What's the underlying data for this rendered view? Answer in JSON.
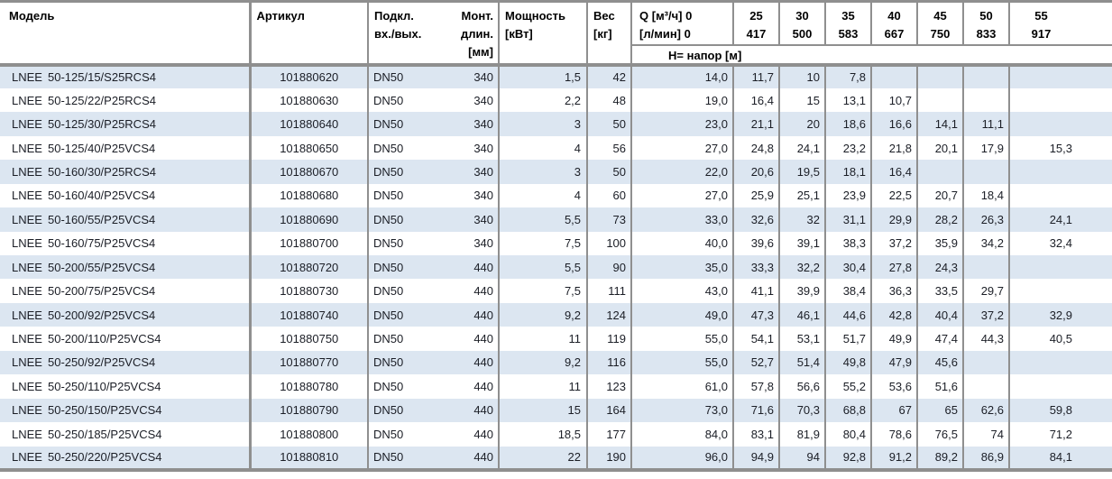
{
  "colors": {
    "stripe": "#dce6f1",
    "border": "#8f8f8f",
    "text": "#1b1e26",
    "header_text": "#000000"
  },
  "table": {
    "header": {
      "model": "Модель",
      "article": "Артикул",
      "connection_line1": "Подкл.",
      "connection_line2": "вх./вых.",
      "length_line1": "Монт.",
      "length_line2": "длин.",
      "length_line3": "[мм]",
      "power_line1": "Мощность",
      "power_line2": "[кВт]",
      "weight_line1": "Вес",
      "weight_line2": "[кг]",
      "q_line1": "Q [м³/ч] 0",
      "q_line2": "[л/мин] 0",
      "flow_columns": [
        {
          "m3h": "25",
          "lmin": "417"
        },
        {
          "m3h": "30",
          "lmin": "500"
        },
        {
          "m3h": "35",
          "lmin": "583"
        },
        {
          "m3h": "40",
          "lmin": "667"
        },
        {
          "m3h": "45",
          "lmin": "750"
        },
        {
          "m3h": "50",
          "lmin": "833"
        },
        {
          "m3h": "55",
          "lmin": "917"
        }
      ],
      "head_subheader": "Н= напор [м]"
    },
    "rows": [
      {
        "brand": "LNEE",
        "model": "50-125/15/S25RCS4",
        "article": "101880620",
        "connection": "DN50",
        "length": "340",
        "power": "1,5",
        "weight": "42",
        "h": [
          "14,0",
          "11,7",
          "10",
          "7,8",
          "",
          "",
          "",
          ""
        ]
      },
      {
        "brand": "LNEE",
        "model": "50-125/22/P25RCS4",
        "article": "101880630",
        "connection": "DN50",
        "length": "340",
        "power": "2,2",
        "weight": "48",
        "h": [
          "19,0",
          "16,4",
          "15",
          "13,1",
          "10,7",
          "",
          "",
          ""
        ]
      },
      {
        "brand": "LNEE",
        "model": "50-125/30/P25RCS4",
        "article": "101880640",
        "connection": "DN50",
        "length": "340",
        "power": "3",
        "weight": "50",
        "h": [
          "23,0",
          "21,1",
          "20",
          "18,6",
          "16,6",
          "14,1",
          "11,1",
          ""
        ]
      },
      {
        "brand": "LNEE",
        "model": "50-125/40/P25VCS4",
        "article": "101880650",
        "connection": "DN50",
        "length": "340",
        "power": "4",
        "weight": "56",
        "h": [
          "27,0",
          "24,8",
          "24,1",
          "23,2",
          "21,8",
          "20,1",
          "17,9",
          "15,3"
        ]
      },
      {
        "brand": "LNEE",
        "model": "50-160/30/P25RCS4",
        "article": "101880670",
        "connection": "DN50",
        "length": "340",
        "power": "3",
        "weight": "50",
        "h": [
          "22,0",
          "20,6",
          "19,5",
          "18,1",
          "16,4",
          "",
          "",
          ""
        ]
      },
      {
        "brand": "LNEE",
        "model": "50-160/40/P25VCS4",
        "article": "101880680",
        "connection": "DN50",
        "length": "340",
        "power": "4",
        "weight": "60",
        "h": [
          "27,0",
          "25,9",
          "25,1",
          "23,9",
          "22,5",
          "20,7",
          "18,4",
          ""
        ]
      },
      {
        "brand": "LNEE",
        "model": "50-160/55/P25VCS4",
        "article": "101880690",
        "connection": "DN50",
        "length": "340",
        "power": "5,5",
        "weight": "73",
        "h": [
          "33,0",
          "32,6",
          "32",
          "31,1",
          "29,9",
          "28,2",
          "26,3",
          "24,1"
        ]
      },
      {
        "brand": "LNEE",
        "model": "50-160/75/P25VCS4",
        "article": "101880700",
        "connection": "DN50",
        "length": "340",
        "power": "7,5",
        "weight": "100",
        "h": [
          "40,0",
          "39,6",
          "39,1",
          "38,3",
          "37,2",
          "35,9",
          "34,2",
          "32,4"
        ]
      },
      {
        "brand": "LNEE",
        "model": "50-200/55/P25VCS4",
        "article": "101880720",
        "connection": "DN50",
        "length": "440",
        "power": "5,5",
        "weight": "90",
        "h": [
          "35,0",
          "33,3",
          "32,2",
          "30,4",
          "27,8",
          "24,3",
          "",
          ""
        ]
      },
      {
        "brand": "LNEE",
        "model": "50-200/75/P25VCS4",
        "article": "101880730",
        "connection": "DN50",
        "length": "440",
        "power": "7,5",
        "weight": "111",
        "h": [
          "43,0",
          "41,1",
          "39,9",
          "38,4",
          "36,3",
          "33,5",
          "29,7",
          ""
        ]
      },
      {
        "brand": "LNEE",
        "model": "50-200/92/P25VCS4",
        "article": "101880740",
        "connection": "DN50",
        "length": "440",
        "power": "9,2",
        "weight": "124",
        "h": [
          "49,0",
          "47,3",
          "46,1",
          "44,6",
          "42,8",
          "40,4",
          "37,2",
          "32,9"
        ]
      },
      {
        "brand": "LNEE",
        "model": "50-200/110/P25VCS4",
        "article": "101880750",
        "connection": "DN50",
        "length": "440",
        "power": "11",
        "weight": "119",
        "h": [
          "55,0",
          "54,1",
          "53,1",
          "51,7",
          "49,9",
          "47,4",
          "44,3",
          "40,5"
        ]
      },
      {
        "brand": "LNEE",
        "model": "50-250/92/P25VCS4",
        "article": "101880770",
        "connection": "DN50",
        "length": "440",
        "power": "9,2",
        "weight": "116",
        "h": [
          "55,0",
          "52,7",
          "51,4",
          "49,8",
          "47,9",
          "45,6",
          "",
          ""
        ]
      },
      {
        "brand": "LNEE",
        "model": "50-250/110/P25VCS4",
        "article": "101880780",
        "connection": "DN50",
        "length": "440",
        "power": "11",
        "weight": "123",
        "h": [
          "61,0",
          "57,8",
          "56,6",
          "55,2",
          "53,6",
          "51,6",
          "",
          ""
        ]
      },
      {
        "brand": "LNEE",
        "model": "50-250/150/P25VCS4",
        "article": "101880790",
        "connection": "DN50",
        "length": "440",
        "power": "15",
        "weight": "164",
        "h": [
          "73,0",
          "71,6",
          "70,3",
          "68,8",
          "67",
          "65",
          "62,6",
          "59,8"
        ]
      },
      {
        "brand": "LNEE",
        "model": "50-250/185/P25VCS4",
        "article": "101880800",
        "connection": "DN50",
        "length": "440",
        "power": "18,5",
        "weight": "177",
        "h": [
          "84,0",
          "83,1",
          "81,9",
          "80,4",
          "78,6",
          "76,5",
          "74",
          "71,2"
        ]
      },
      {
        "brand": "LNEE",
        "model": "50-250/220/P25VCS4",
        "article": "101880810",
        "connection": "DN50",
        "length": "440",
        "power": "22",
        "weight": "190",
        "h": [
          "96,0",
          "94,9",
          "94",
          "92,8",
          "91,2",
          "89,2",
          "86,9",
          "84,1"
        ]
      }
    ]
  }
}
